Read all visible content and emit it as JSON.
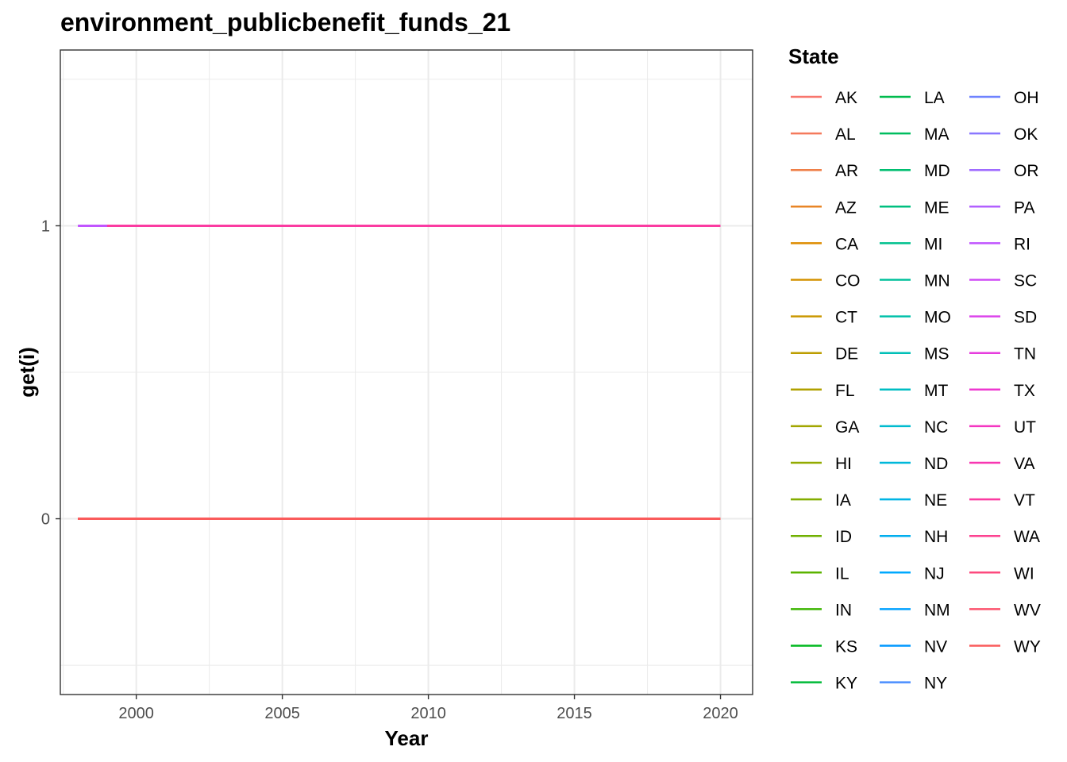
{
  "chart_data": {
    "type": "line",
    "title": "environment_publicbenefit_funds_21",
    "xlabel": "Year",
    "ylabel": "get(i)",
    "xlim": [
      1997.4,
      2021.1
    ],
    "ylim": [
      -0.6,
      1.6
    ],
    "x_ticks": [
      2000,
      2005,
      2010,
      2015,
      2020
    ],
    "y_ticks": [
      0,
      1
    ],
    "grid": true,
    "legend": {
      "title": "State",
      "position": "right",
      "columns": 3
    },
    "series": [
      {
        "name": "AK",
        "color": "#F8766D",
        "x": [
          1998,
          2020
        ],
        "y": [
          0,
          0
        ]
      },
      {
        "name": "AL",
        "color": "#F47A5C",
        "x": [
          1998,
          2020
        ],
        "y": [
          0,
          0
        ]
      },
      {
        "name": "AR",
        "color": "#EF7F47",
        "x": [
          1998,
          2020
        ],
        "y": [
          0,
          0
        ]
      },
      {
        "name": "AZ",
        "color": "#E88526",
        "x": [
          1998,
          2020
        ],
        "y": [
          0,
          0
        ]
      },
      {
        "name": "CA",
        "color": "#DE8C00",
        "x": [
          1998,
          2020
        ],
        "y": [
          0,
          0
        ]
      },
      {
        "name": "CO",
        "color": "#D49200",
        "x": [
          1998,
          2020
        ],
        "y": [
          0,
          0
        ]
      },
      {
        "name": "CT",
        "color": "#C99800",
        "x": [
          1998,
          2020
        ],
        "y": [
          0,
          0
        ]
      },
      {
        "name": "DE",
        "color": "#BC9D00",
        "x": [
          1998,
          2020
        ],
        "y": [
          0,
          0
        ]
      },
      {
        "name": "FL",
        "color": "#B0A100",
        "x": [
          1998,
          2020
        ],
        "y": [
          0,
          0
        ]
      },
      {
        "name": "GA",
        "color": "#A2A600",
        "x": [
          1998,
          2020
        ],
        "y": [
          0,
          0
        ]
      },
      {
        "name": "HI",
        "color": "#93AA00",
        "x": [
          1998,
          2020
        ],
        "y": [
          0,
          0
        ]
      },
      {
        "name": "IA",
        "color": "#83AD00",
        "x": [
          1998,
          2020
        ],
        "y": [
          0,
          0
        ]
      },
      {
        "name": "ID",
        "color": "#70B000",
        "x": [
          1998,
          2020
        ],
        "y": [
          0,
          0
        ]
      },
      {
        "name": "IL",
        "color": "#5BB300",
        "x": [
          1998,
          2020
        ],
        "y": [
          0,
          0
        ]
      },
      {
        "name": "IN",
        "color": "#3CB500",
        "x": [
          1998,
          2020
        ],
        "y": [
          0,
          0
        ]
      },
      {
        "name": "KS",
        "color": "#00B81F",
        "x": [
          1998,
          2020
        ],
        "y": [
          0,
          0
        ]
      },
      {
        "name": "KY",
        "color": "#00BA38",
        "x": [
          1998,
          2020
        ],
        "y": [
          0,
          0
        ]
      },
      {
        "name": "LA",
        "color": "#00BB4E",
        "x": [
          1998,
          2020
        ],
        "y": [
          0,
          0
        ]
      },
      {
        "name": "MA",
        "color": "#00BD5F",
        "x": [
          1998,
          2020
        ],
        "y": [
          0,
          0
        ]
      },
      {
        "name": "MD",
        "color": "#00BE70",
        "x": [
          1998,
          2020
        ],
        "y": [
          0,
          0
        ]
      },
      {
        "name": "ME",
        "color": "#00BF7F",
        "x": [
          1998,
          2020
        ],
        "y": [
          0,
          0
        ]
      },
      {
        "name": "MI",
        "color": "#00C08E",
        "x": [
          1998,
          2020
        ],
        "y": [
          0,
          0
        ]
      },
      {
        "name": "MN",
        "color": "#00C19C",
        "x": [
          1998,
          2020
        ],
        "y": [
          0,
          0
        ]
      },
      {
        "name": "MO",
        "color": "#00C0AA",
        "x": [
          1998,
          2020
        ],
        "y": [
          0,
          0
        ]
      },
      {
        "name": "MS",
        "color": "#00BFB7",
        "x": [
          1998,
          2020
        ],
        "y": [
          0,
          0
        ]
      },
      {
        "name": "MT",
        "color": "#00BDC3",
        "x": [
          1998,
          2020
        ],
        "y": [
          0,
          0
        ]
      },
      {
        "name": "NC",
        "color": "#00BBCF",
        "x": [
          1998,
          2020
        ],
        "y": [
          0,
          0
        ]
      },
      {
        "name": "ND",
        "color": "#00B8DA",
        "x": [
          1998,
          2020
        ],
        "y": [
          0,
          0
        ]
      },
      {
        "name": "NE",
        "color": "#00B4E4",
        "x": [
          1998,
          2020
        ],
        "y": [
          0,
          0
        ]
      },
      {
        "name": "NH",
        "color": "#00AEEE",
        "x": [
          1998,
          2020
        ],
        "y": [
          0,
          0
        ]
      },
      {
        "name": "NJ",
        "color": "#00A9FF",
        "x": [
          1998,
          2020
        ],
        "y": [
          0,
          0
        ]
      },
      {
        "name": "NM",
        "color": "#00A1FF",
        "x": [
          1998,
          2020
        ],
        "y": [
          0,
          0
        ]
      },
      {
        "name": "NV",
        "color": "#0098FF",
        "x": [
          1998,
          2020
        ],
        "y": [
          0,
          0
        ]
      },
      {
        "name": "NY",
        "color": "#4B8EFF",
        "x": [
          1998,
          2020
        ],
        "y": [
          0,
          0
        ]
      },
      {
        "name": "OH",
        "color": "#6F83FF",
        "x": [
          1998,
          2020
        ],
        "y": [
          0,
          0
        ]
      },
      {
        "name": "OK",
        "color": "#8A77FF",
        "x": [
          1998,
          2020
        ],
        "y": [
          0,
          0
        ]
      },
      {
        "name": "OR",
        "color": "#9F6BFF",
        "x": [
          1998,
          2020
        ],
        "y": [
          0,
          0
        ]
      },
      {
        "name": "PA",
        "color": "#B260FF",
        "x": [
          1998,
          2020
        ],
        "y": [
          0,
          0
        ]
      },
      {
        "name": "RI",
        "color": "#C155FF",
        "x": [
          1998,
          2020
        ],
        "y": [
          1,
          1
        ]
      },
      {
        "name": "SC",
        "color": "#CF4BF5",
        "x": [
          1998,
          2020
        ],
        "y": [
          0,
          0
        ]
      },
      {
        "name": "SD",
        "color": "#DC43EB",
        "x": [
          1998,
          2020
        ],
        "y": [
          0,
          0
        ]
      },
      {
        "name": "TN",
        "color": "#E63CDE",
        "x": [
          1998,
          2020
        ],
        "y": [
          0,
          0
        ]
      },
      {
        "name": "TX",
        "color": "#EE38D0",
        "x": [
          1998,
          2020
        ],
        "y": [
          0,
          0
        ]
      },
      {
        "name": "UT",
        "color": "#F436C1",
        "x": [
          1998,
          2020
        ],
        "y": [
          0,
          0
        ]
      },
      {
        "name": "VA",
        "color": "#F837B1",
        "x": [
          1998,
          2020
        ],
        "y": [
          0,
          0
        ]
      },
      {
        "name": "VT",
        "color": "#FB3BA1",
        "x": [
          1999,
          2020
        ],
        "y": [
          1,
          1
        ]
      },
      {
        "name": "WA",
        "color": "#FD4290",
        "x": [
          1998,
          2020
        ],
        "y": [
          0,
          0
        ]
      },
      {
        "name": "WI",
        "color": "#FD4A7E",
        "x": [
          1998,
          2020
        ],
        "y": [
          0,
          0
        ]
      },
      {
        "name": "WV",
        "color": "#FC526C",
        "x": [
          1998,
          2020
        ],
        "y": [
          0,
          0
        ]
      },
      {
        "name": "WY",
        "color": "#FA5B5B",
        "x": [
          1998,
          2020
        ],
        "y": [
          0,
          0
        ]
      }
    ]
  }
}
